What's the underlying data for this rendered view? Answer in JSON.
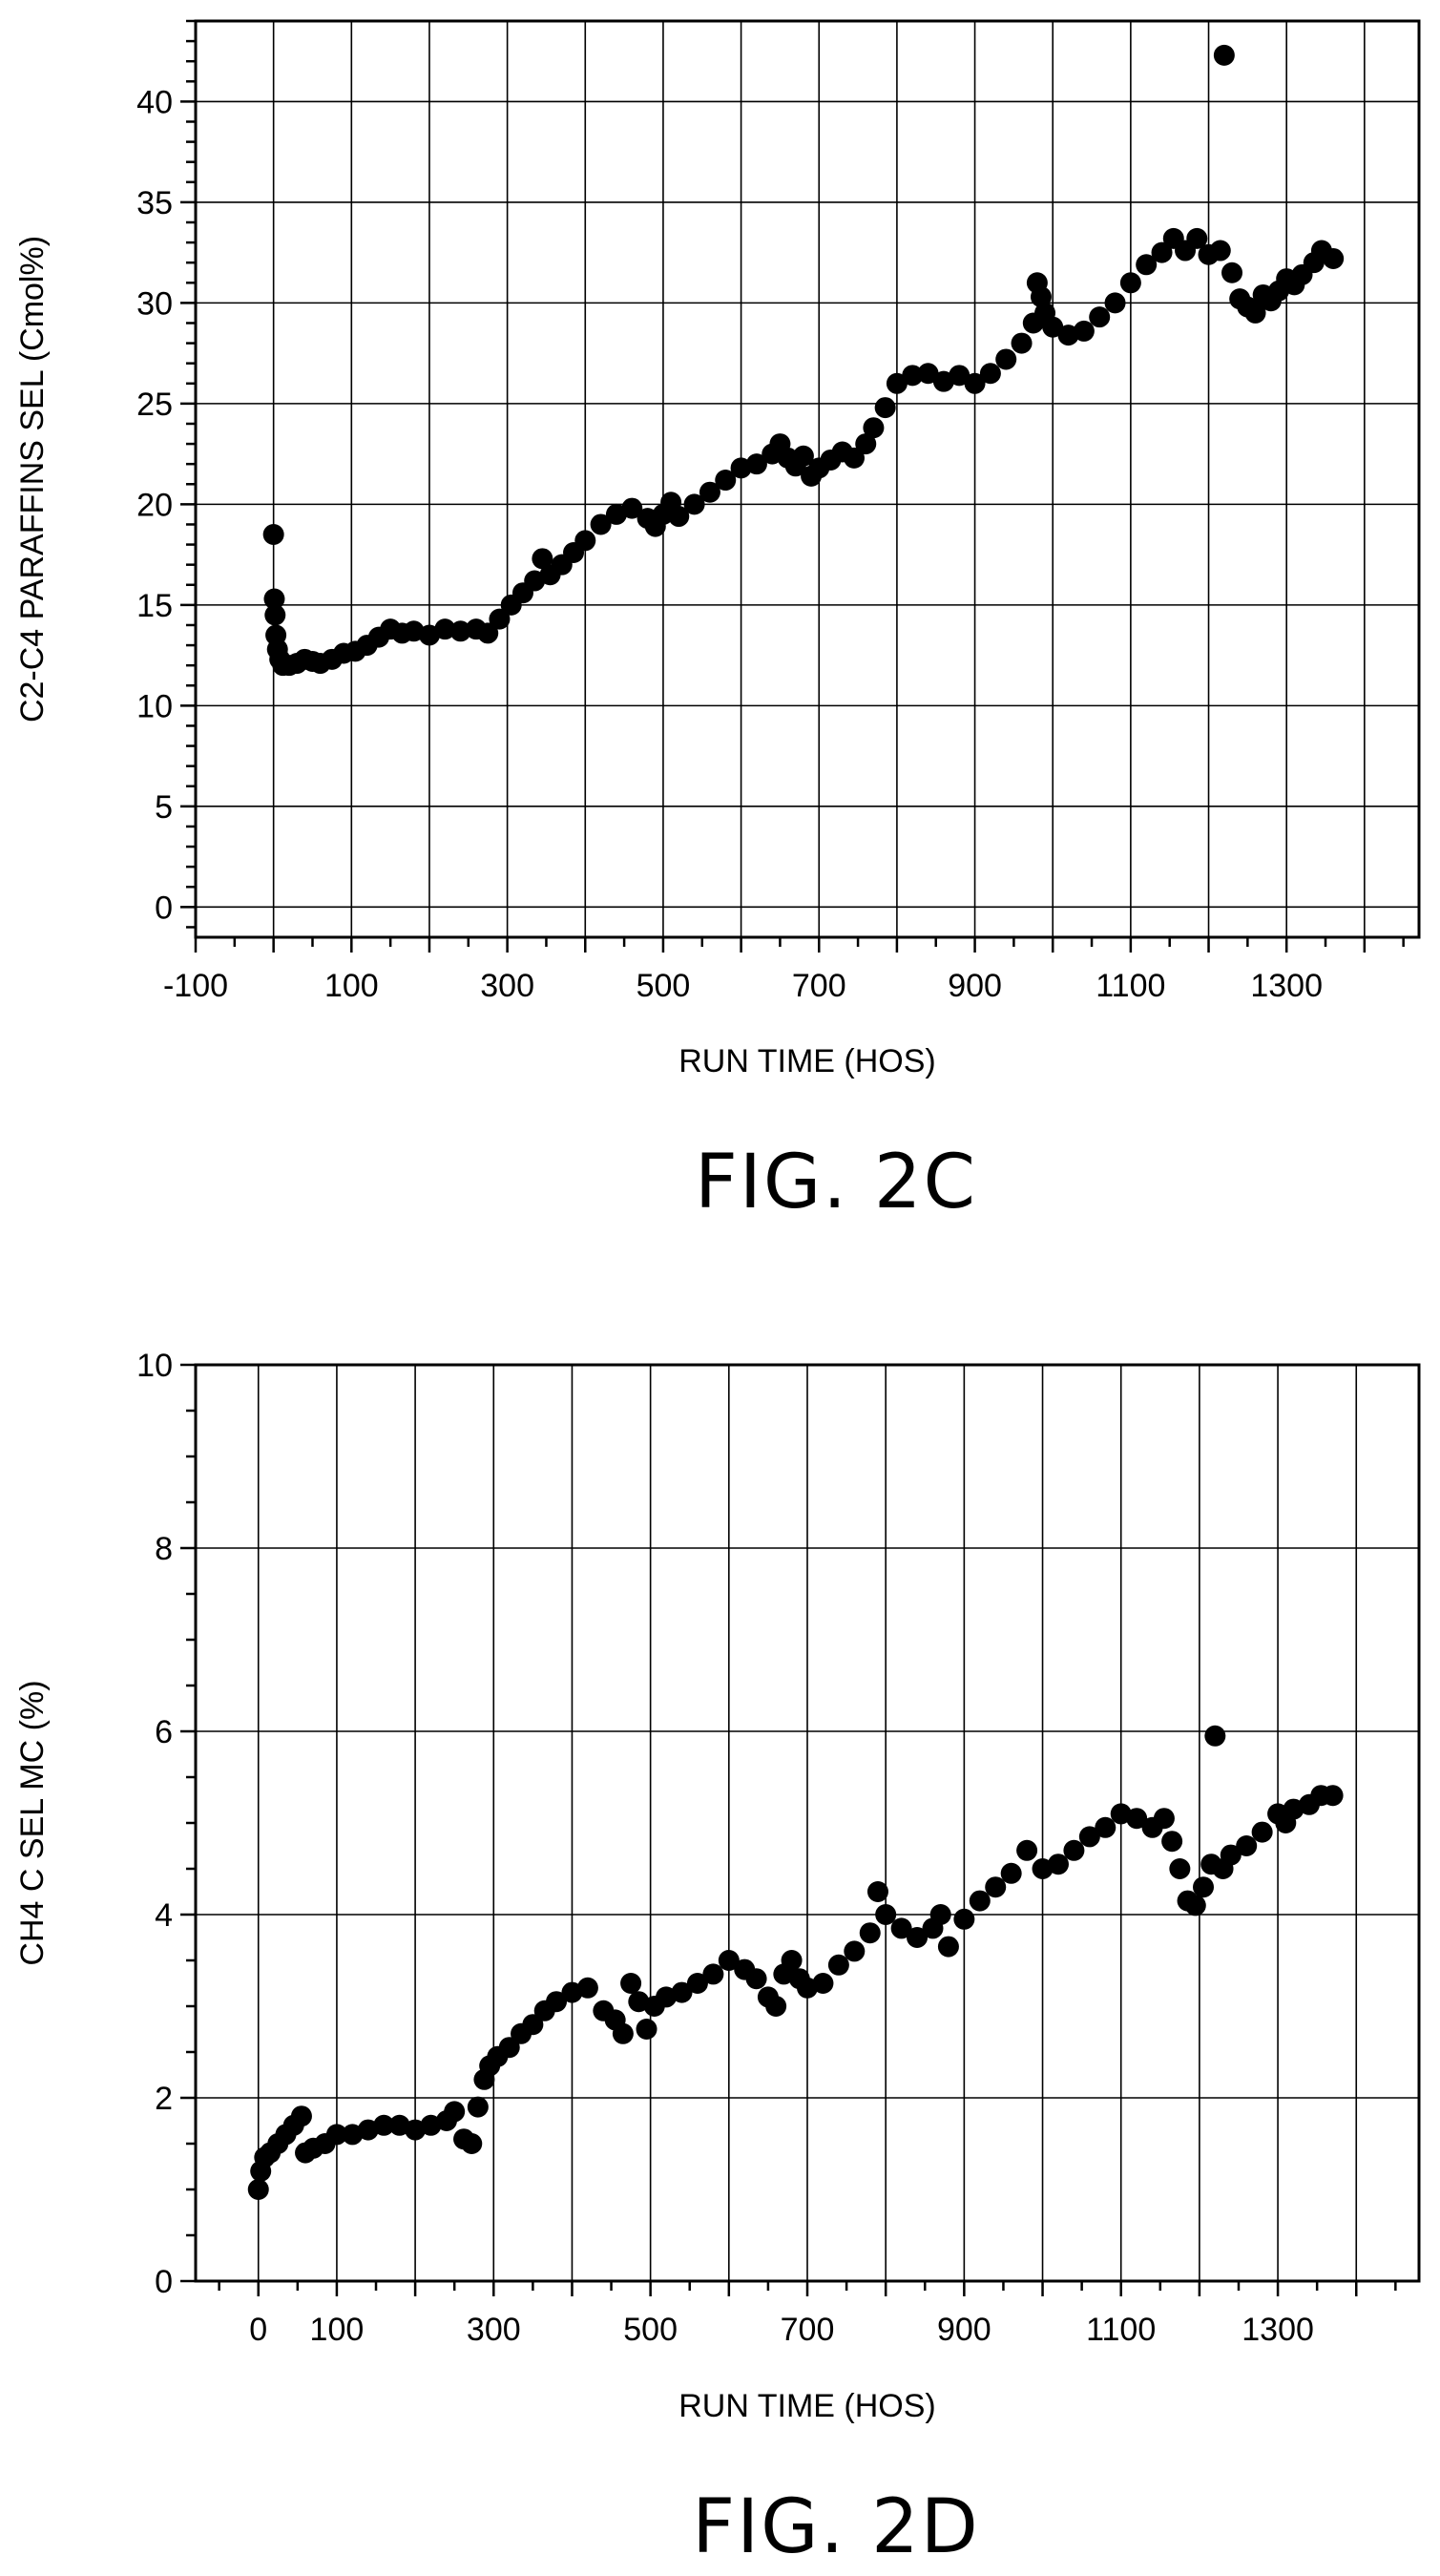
{
  "chart_data": [
    {
      "type": "scatter",
      "caption": "FIG. 2C",
      "xlabel": "RUN TIME (HOS)",
      "ylabel": "C2-C4 PARAFFINS SEL (Cmol%)",
      "xlim": [
        -100,
        1470
      ],
      "ylim": [
        -1.5,
        44
      ],
      "xgrid": [
        0,
        100,
        200,
        300,
        400,
        500,
        600,
        700,
        800,
        900,
        1000,
        1100,
        1200,
        1300,
        1400
      ],
      "xticklabels": [
        {
          "value": -100,
          "label": "-100"
        },
        {
          "value": 100,
          "label": "100"
        },
        {
          "value": 300,
          "label": "300"
        },
        {
          "value": 500,
          "label": "500"
        },
        {
          "value": 700,
          "label": "700"
        },
        {
          "value": 900,
          "label": "900"
        },
        {
          "value": 1100,
          "label": "1100"
        },
        {
          "value": 1300,
          "label": "1300"
        }
      ],
      "yticks": [
        0,
        5,
        10,
        15,
        20,
        25,
        30,
        35,
        40
      ],
      "grid": true,
      "x": [
        0,
        1,
        2,
        3,
        5,
        8,
        12,
        20,
        30,
        40,
        50,
        60,
        75,
        90,
        105,
        120,
        135,
        150,
        165,
        180,
        200,
        220,
        240,
        260,
        275,
        290,
        305,
        320,
        335,
        345,
        355,
        370,
        385,
        400,
        420,
        440,
        460,
        480,
        490,
        500,
        510,
        520,
        540,
        560,
        580,
        600,
        620,
        640,
        650,
        660,
        670,
        680,
        690,
        700,
        715,
        730,
        745,
        760,
        770,
        785,
        800,
        820,
        840,
        860,
        880,
        900,
        920,
        940,
        960,
        975,
        980,
        985,
        990,
        1000,
        1020,
        1040,
        1060,
        1080,
        1100,
        1120,
        1140,
        1155,
        1170,
        1185,
        1200,
        1215,
        1220,
        1230,
        1240,
        1250,
        1260,
        1270,
        1280,
        1290,
        1300,
        1310,
        1320,
        1335,
        1345,
        1360
      ],
      "y": [
        18.5,
        15.3,
        14.5,
        13.5,
        12.8,
        12.3,
        12.0,
        12.0,
        12.1,
        12.3,
        12.2,
        12.1,
        12.3,
        12.6,
        12.7,
        13.0,
        13.4,
        13.8,
        13.6,
        13.7,
        13.5,
        13.8,
        13.7,
        13.8,
        13.6,
        14.3,
        15.0,
        15.6,
        16.2,
        17.3,
        16.5,
        17.0,
        17.6,
        18.2,
        19.0,
        19.5,
        19.8,
        19.3,
        18.9,
        19.5,
        20.1,
        19.4,
        20.0,
        20.6,
        21.2,
        21.8,
        22.0,
        22.5,
        23.0,
        22.3,
        21.9,
        22.4,
        21.4,
        21.8,
        22.2,
        22.6,
        22.3,
        23.0,
        23.8,
        24.8,
        26.0,
        26.4,
        26.5,
        26.1,
        26.4,
        26.0,
        26.5,
        27.2,
        28.0,
        29.0,
        31.0,
        30.3,
        29.5,
        28.8,
        28.4,
        28.6,
        29.3,
        30.0,
        31.0,
        31.9,
        32.5,
        33.2,
        32.6,
        33.2,
        32.4,
        32.6,
        42.3,
        31.5,
        30.2,
        29.8,
        29.5,
        30.4,
        30.1,
        30.6,
        31.2,
        30.9,
        31.4,
        32.0,
        32.6,
        32.2
      ]
    },
    {
      "type": "scatter",
      "caption": "FIG. 2D",
      "xlabel": "RUN TIME (HOS)",
      "ylabel": "CH4 C SEL MC (%)",
      "xlim": [
        -80,
        1480
      ],
      "ylim": [
        0,
        10
      ],
      "xgrid": [
        0,
        100,
        200,
        300,
        400,
        500,
        600,
        700,
        800,
        900,
        1000,
        1100,
        1200,
        1300,
        1400
      ],
      "xticklabels": [
        {
          "value": 0,
          "label": "0"
        },
        {
          "value": 100,
          "label": "100"
        },
        {
          "value": 300,
          "label": "300"
        },
        {
          "value": 500,
          "label": "500"
        },
        {
          "value": 700,
          "label": "700"
        },
        {
          "value": 900,
          "label": "900"
        },
        {
          "value": 1100,
          "label": "1100"
        },
        {
          "value": 1300,
          "label": "1300"
        }
      ],
      "yticks": [
        0,
        2,
        4,
        6,
        8,
        10
      ],
      "grid": true,
      "x": [
        0,
        3,
        8,
        15,
        25,
        35,
        45,
        55,
        60,
        70,
        85,
        100,
        120,
        140,
        160,
        180,
        200,
        220,
        240,
        250,
        262,
        272,
        280,
        288,
        295,
        305,
        320,
        335,
        350,
        365,
        380,
        400,
        420,
        440,
        455,
        465,
        475,
        485,
        495,
        505,
        520,
        540,
        560,
        580,
        600,
        620,
        635,
        650,
        660,
        670,
        680,
        690,
        700,
        720,
        740,
        760,
        780,
        790,
        800,
        820,
        840,
        860,
        870,
        880,
        900,
        920,
        940,
        960,
        980,
        1000,
        1020,
        1040,
        1060,
        1080,
        1100,
        1120,
        1140,
        1155,
        1165,
        1175,
        1185,
        1195,
        1205,
        1215,
        1220,
        1230,
        1240,
        1260,
        1280,
        1300,
        1310,
        1320,
        1340,
        1355,
        1370
      ],
      "y": [
        1.0,
        1.2,
        1.35,
        1.4,
        1.5,
        1.6,
        1.7,
        1.8,
        1.4,
        1.45,
        1.5,
        1.6,
        1.6,
        1.65,
        1.7,
        1.7,
        1.65,
        1.7,
        1.75,
        1.85,
        1.55,
        1.5,
        1.9,
        2.2,
        2.35,
        2.45,
        2.55,
        2.7,
        2.8,
        2.95,
        3.05,
        3.15,
        3.2,
        2.95,
        2.85,
        2.7,
        3.25,
        3.05,
        2.75,
        3.0,
        3.1,
        3.15,
        3.25,
        3.35,
        3.5,
        3.4,
        3.3,
        3.1,
        3.0,
        3.35,
        3.5,
        3.3,
        3.2,
        3.25,
        3.45,
        3.6,
        3.8,
        4.25,
        4.0,
        3.85,
        3.75,
        3.85,
        4.0,
        3.65,
        3.95,
        4.15,
        4.3,
        4.45,
        4.7,
        4.5,
        4.55,
        4.7,
        4.85,
        4.95,
        5.1,
        5.05,
        4.95,
        5.05,
        4.8,
        4.5,
        4.15,
        4.1,
        4.3,
        4.55,
        5.95,
        4.5,
        4.65,
        4.75,
        4.9,
        5.1,
        5.0,
        5.15,
        5.2,
        5.3,
        5.3
      ]
    }
  ]
}
